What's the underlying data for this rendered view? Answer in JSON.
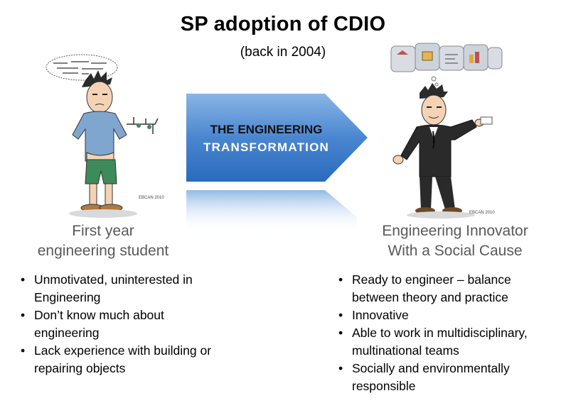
{
  "title": "SP adoption of CDIO",
  "subtitle": "(back in 2004)",
  "arrow": {
    "line1": "THE ENGINEERING",
    "line2": "TRANSFORMATION"
  },
  "left": {
    "caption_line1": "First year",
    "caption_line2": "engineering student",
    "bullets": [
      {
        "l1": "Unmotivated, uninterested in",
        "l2": "Engineering"
      },
      {
        "l1": "Don’t know much about",
        "l2": "engineering"
      },
      {
        "l1": "Lack experience with building or",
        "l2": "repairing objects"
      }
    ]
  },
  "right": {
    "caption_line1": "Engineering Innovator",
    "caption_line2": "With a Social Cause",
    "bullets": [
      {
        "l1": "Ready to engineer – balance",
        "l2": "between theory and practice"
      },
      {
        "l1": "Innovative",
        "l2": ""
      },
      {
        "l1": "Able to work in multidisciplinary,",
        "l2": "multinational teams"
      },
      {
        "l1": "Socially and environmentally",
        "l2": "responsible"
      }
    ]
  },
  "illustrations": {
    "left_figure": "student-cartoon",
    "right_figure": "innovator-cartoon",
    "thought_bubble": "formula-thought-bubble",
    "puzzle": "puzzle-pieces-thought"
  },
  "colors": {
    "arrow_top": "#5b93d6",
    "arrow_bottom": "#2a6bbd",
    "caption": "#595959"
  }
}
